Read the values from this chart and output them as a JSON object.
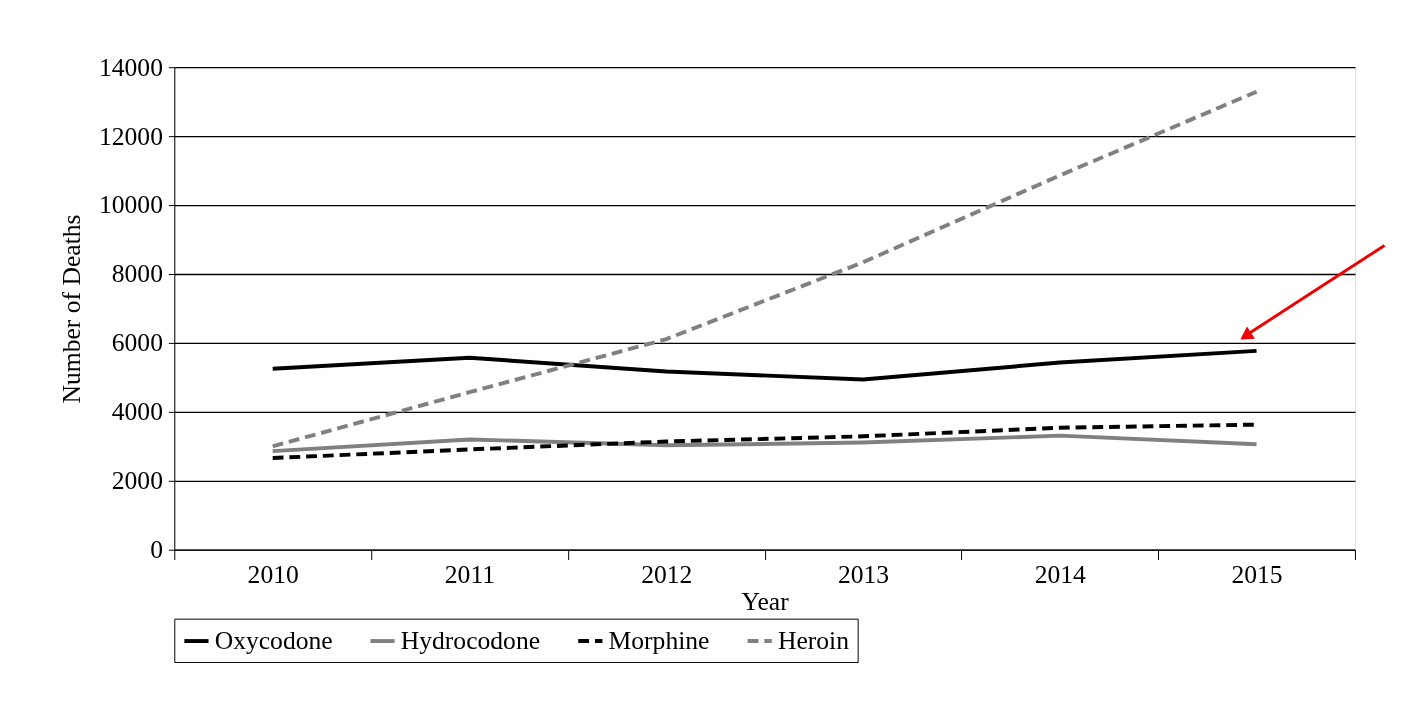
{
  "chart_data": {
    "type": "line",
    "xlabel": "Year",
    "ylabel": "Number of Deaths",
    "categories": [
      "2010",
      "2011",
      "2012",
      "2013",
      "2014",
      "2015"
    ],
    "series": [
      {
        "name": "Oxycodone",
        "color": "#000000",
        "line_style": "solid",
        "values": [
          5250,
          5570,
          5170,
          4940,
          5430,
          5770
        ]
      },
      {
        "name": "Hydrocodone",
        "color": "#808080",
        "line_style": "solid",
        "values": [
          2860,
          3200,
          3030,
          3110,
          3310,
          3060
        ]
      },
      {
        "name": "Morphine",
        "color": "#000000",
        "line_style": "dashed",
        "values": [
          2660,
          2910,
          3140,
          3290,
          3540,
          3630
        ]
      },
      {
        "name": "Heroin",
        "color": "#808080",
        "line_style": "dashed",
        "values": [
          3000,
          4570,
          6110,
          8340,
          10860,
          13290
        ]
      }
    ],
    "ylim": [
      0,
      14000
    ],
    "yticks": [
      0,
      2000,
      4000,
      6000,
      8000,
      10000,
      12000,
      14000
    ],
    "grid": "y",
    "legend": "bottom",
    "marker": "none"
  }
}
